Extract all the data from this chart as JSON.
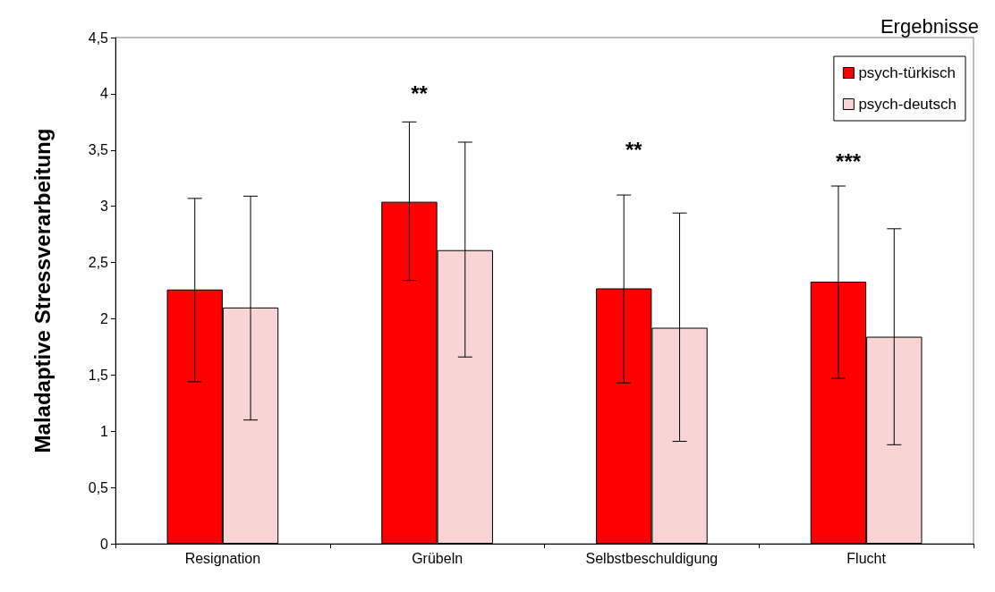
{
  "chart_data": {
    "type": "bar",
    "ylabel": "Maladaptive Stressverarbeitung",
    "categories": [
      "Resignation",
      "Grübeln",
      "Selbstbeschuldigung",
      "Flucht"
    ],
    "series": [
      {
        "name": "psych-türkisch",
        "color": "#ff0000",
        "values": [
          2.26,
          3.04,
          2.27,
          2.33
        ],
        "errors": [
          [
            1.44,
            3.07
          ],
          [
            2.34,
            3.75
          ],
          [
            1.43,
            3.1
          ],
          [
            1.47,
            3.18
          ]
        ]
      },
      {
        "name": "psych-deutsch",
        "color": "#f8d4d4",
        "values": [
          2.1,
          2.61,
          1.92,
          1.84
        ],
        "errors": [
          [
            1.1,
            3.09
          ],
          [
            1.66,
            3.57
          ],
          [
            0.91,
            2.94
          ],
          [
            0.88,
            2.8
          ]
        ]
      }
    ],
    "ylim": [
      0,
      4.5
    ],
    "yticks": [
      0,
      {
        "value": 0.5,
        "label": "0,5"
      },
      1,
      {
        "value": 1.5,
        "label": "1,5"
      },
      2,
      {
        "value": 2.5,
        "label": "2,5"
      },
      3,
      {
        "value": 3.5,
        "label": "3,5"
      },
      4,
      {
        "value": 4.5,
        "label": "4,5"
      }
    ],
    "grid": false,
    "legend": "top right",
    "annotations": [
      "**",
      "**",
      "***",
      "Ergebnisse"
    ]
  }
}
